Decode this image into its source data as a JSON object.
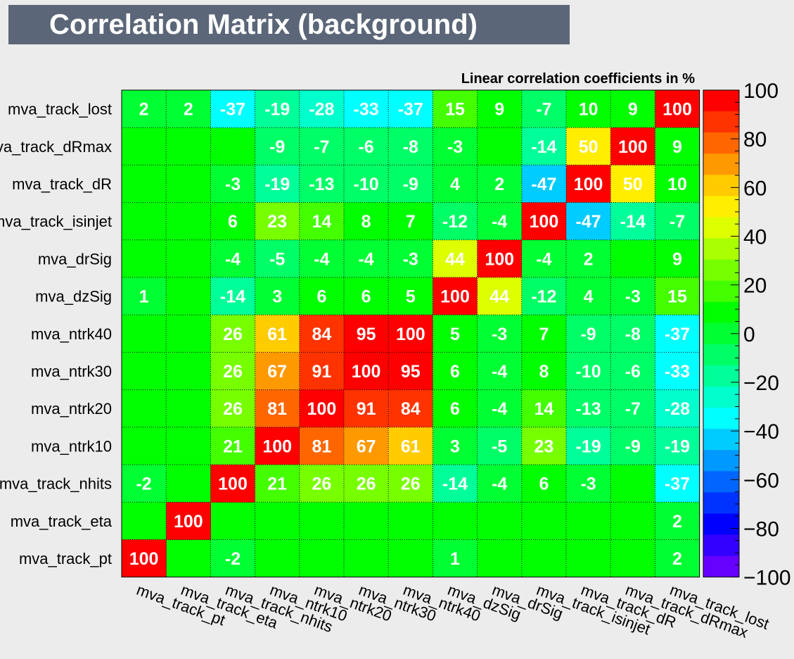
{
  "chart_data": {
    "type": "heatmap",
    "title": "Correlation Matrix (background)",
    "subtitle": "Linear correlation coefficients in %",
    "variables": [
      "mva_track_pt",
      "mva_track_eta",
      "mva_track_nhits",
      "mva_ntrk10",
      "mva_ntrk20",
      "mva_ntrk30",
      "mva_ntrk40",
      "mva_dzSig",
      "mva_drSig",
      "mva_track_isinjet",
      "mva_track_dR",
      "mva_track_dRmax",
      "mva_track_lost"
    ],
    "rows_top_to_bottom": [
      {
        "label": "mva_track_lost",
        "values": [
          2,
          2,
          -37,
          -19,
          -28,
          -33,
          -37,
          15,
          9,
          -7,
          10,
          9,
          100
        ]
      },
      {
        "label": "mva_track_dRmax",
        "values": [
          null,
          null,
          null,
          -9,
          -7,
          -6,
          -8,
          -3,
          null,
          -14,
          50,
          100,
          9
        ]
      },
      {
        "label": "mva_track_dR",
        "values": [
          null,
          null,
          -3,
          -19,
          -13,
          -10,
          -9,
          4,
          2,
          -47,
          100,
          50,
          10
        ]
      },
      {
        "label": "mva_track_isinjet",
        "values": [
          null,
          null,
          6,
          23,
          14,
          8,
          7,
          -12,
          -4,
          100,
          -47,
          -14,
          -7
        ]
      },
      {
        "label": "mva_drSig",
        "values": [
          null,
          null,
          -4,
          -5,
          -4,
          -4,
          -3,
          44,
          100,
          -4,
          2,
          null,
          9
        ]
      },
      {
        "label": "mva_dzSig",
        "values": [
          1,
          null,
          -14,
          3,
          6,
          6,
          5,
          100,
          44,
          -12,
          4,
          -3,
          15
        ]
      },
      {
        "label": "mva_ntrk40",
        "values": [
          null,
          null,
          26,
          61,
          84,
          95,
          100,
          5,
          -3,
          7,
          -9,
          -8,
          -37
        ]
      },
      {
        "label": "mva_ntrk30",
        "values": [
          null,
          null,
          26,
          67,
          91,
          100,
          95,
          6,
          -4,
          8,
          -10,
          -6,
          -33
        ]
      },
      {
        "label": "mva_ntrk20",
        "values": [
          null,
          null,
          26,
          81,
          100,
          91,
          84,
          6,
          -4,
          14,
          -13,
          -7,
          -28
        ]
      },
      {
        "label": "mva_ntrk10",
        "values": [
          null,
          null,
          21,
          100,
          81,
          67,
          61,
          3,
          -5,
          23,
          -19,
          -9,
          -19
        ]
      },
      {
        "label": "mva_track_nhits",
        "values": [
          -2,
          null,
          100,
          21,
          26,
          26,
          26,
          -14,
          -4,
          6,
          -3,
          null,
          -37
        ]
      },
      {
        "label": "mva_track_eta",
        "values": [
          null,
          100,
          null,
          null,
          null,
          null,
          null,
          null,
          null,
          null,
          null,
          null,
          2
        ]
      },
      {
        "label": "mva_track_pt",
        "values": [
          100,
          null,
          -2,
          null,
          null,
          null,
          null,
          1,
          null,
          null,
          null,
          null,
          2
        ]
      }
    ],
    "zlim": [
      -100,
      100
    ],
    "colorbar_ticks": [
      "100",
      "80",
      "60",
      "40",
      "20",
      "0",
      "−20",
      "−40",
      "−60",
      "−80",
      "−100"
    ],
    "palette_top_to_bottom": [
      "#ff0000",
      "#ff3300",
      "#ff6600",
      "#ff9900",
      "#ffcc00",
      "#ffee00",
      "#ddff00",
      "#aaff00",
      "#77ff00",
      "#44ff00",
      "#00ff00",
      "#00ff33",
      "#00ff66",
      "#00ff99",
      "#00ffcc",
      "#00ffff",
      "#00ccff",
      "#0099ff",
      "#0066ff",
      "#0033ff",
      "#0000ff",
      "#3300ff",
      "#6600ff"
    ]
  }
}
